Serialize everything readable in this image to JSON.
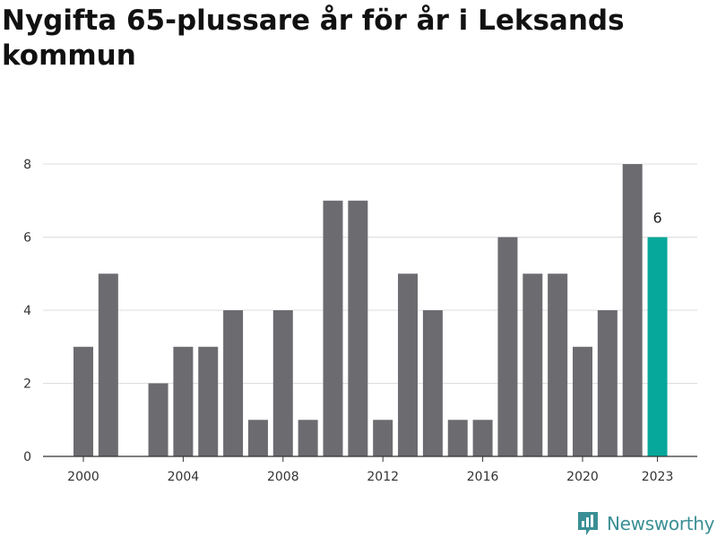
{
  "title": "Nygifta 65-plussare år för år i Leksands kommun",
  "brand": {
    "name": "Newsworthy",
    "icon": "newsworthy-logo-icon",
    "color": "#3a8f95"
  },
  "colors": {
    "bar": "#6c6b70",
    "highlight": "#06a89b",
    "grid": "#dddddd",
    "axis": "#333333"
  },
  "chart_data": {
    "type": "bar",
    "title": "Nygifta 65-plussare år för år i Leksands kommun",
    "xlabel": "",
    "ylabel": "",
    "x": [
      2000,
      2001,
      2002,
      2003,
      2004,
      2005,
      2006,
      2007,
      2008,
      2009,
      2010,
      2011,
      2012,
      2013,
      2014,
      2015,
      2016,
      2017,
      2018,
      2019,
      2020,
      2021,
      2022,
      2023
    ],
    "values": [
      3,
      5,
      0,
      2,
      3,
      3,
      4,
      1,
      4,
      1,
      7,
      7,
      1,
      5,
      4,
      1,
      1,
      6,
      5,
      5,
      3,
      4,
      8,
      6
    ],
    "ylim": [
      0,
      8
    ],
    "yticks": [
      0,
      2,
      4,
      6,
      8
    ],
    "xticks": [
      2000,
      2004,
      2008,
      2012,
      2016,
      2020,
      2023
    ],
    "highlight_year": 2023,
    "highlight_label": "6",
    "grid": true,
    "legend": "none"
  }
}
